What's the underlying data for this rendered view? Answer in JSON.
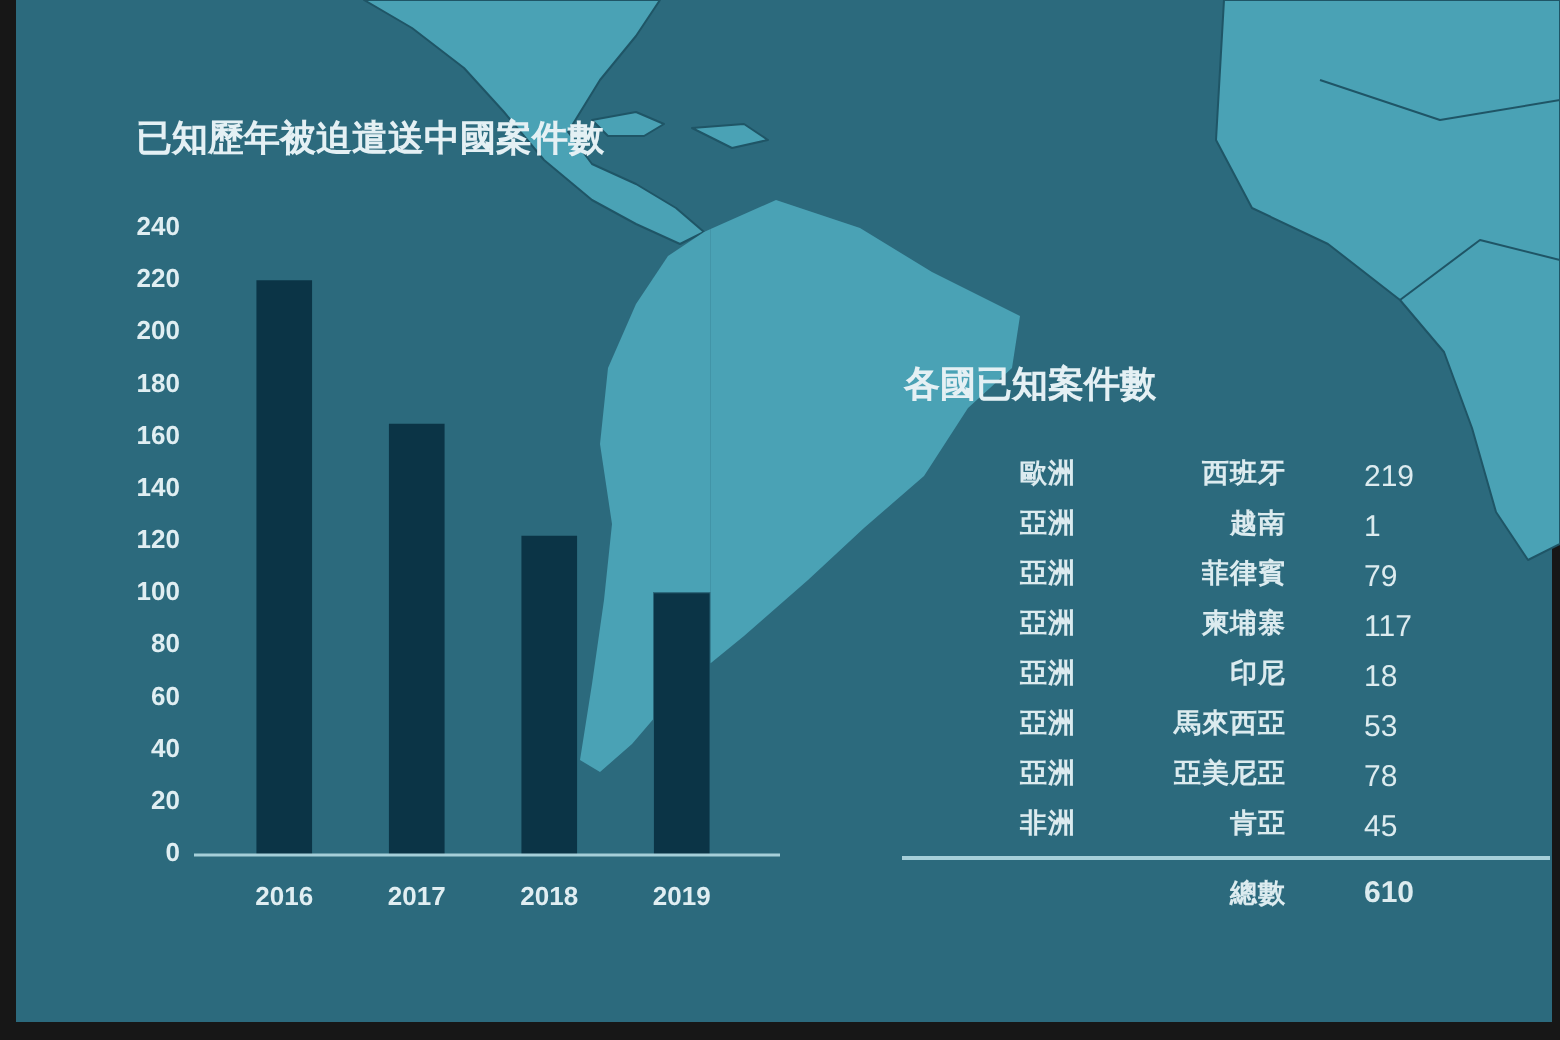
{
  "chart_data": [
    {
      "type": "bar",
      "title": "已知歷年被迫遣送中國案件數",
      "categories": [
        "2016",
        "2017",
        "2018",
        "2019"
      ],
      "values": [
        220,
        165,
        122,
        100
      ],
      "color": "#0b3446",
      "ylim": [
        0,
        240
      ],
      "yticks": [
        0,
        20,
        40,
        60,
        80,
        100,
        120,
        140,
        160,
        180,
        200,
        220,
        240
      ]
    },
    {
      "type": "other",
      "title": "各國已知案件數",
      "categories": [
        "西班牙",
        "越南",
        "菲律賓",
        "柬埔寨",
        "印尼",
        "馬來西亞",
        "亞美尼亞",
        "肯亞"
      ],
      "values": [
        219,
        1,
        79,
        117,
        18,
        53,
        78,
        45
      ],
      "data_labels": true,
      "annotations": [
        {
          "text": "歐洲",
          "x": "西班牙"
        },
        {
          "text": "亞洲",
          "x": "越南"
        },
        {
          "text": "亞洲",
          "x": "菲律賓"
        },
        {
          "text": "亞洲",
          "x": "柬埔寨"
        },
        {
          "text": "亞洲",
          "x": "印尼"
        },
        {
          "text": "亞洲",
          "x": "馬來西亞"
        },
        {
          "text": "亞洲",
          "x": "亞美尼亞"
        },
        {
          "text": "非洲",
          "x": "肯亞"
        },
        "總數"
      ],
      "totals": [
        "610"
      ]
    }
  ]
}
